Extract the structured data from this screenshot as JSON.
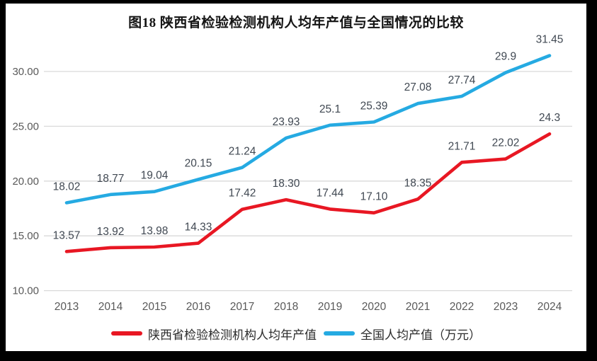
{
  "title": "图18 陕西省检验检测机构人均年产值与全国情况的比较",
  "chart_data": {
    "type": "line",
    "title": "图18 陕西省检验检测机构人均年产值与全国情况的比较",
    "categories": [
      "2013",
      "2014",
      "2015",
      "2016",
      "2017",
      "2018",
      "2019",
      "2020",
      "2021",
      "2022",
      "2023",
      "2024"
    ],
    "series": [
      {
        "name": "陕西省检验检测机构人均年产值",
        "color": "#e81723",
        "values": [
          13.57,
          13.92,
          13.98,
          14.33,
          17.42,
          18.3,
          17.44,
          17.1,
          18.35,
          21.71,
          22.02,
          24.3
        ],
        "labels": [
          "13.57",
          "13.92",
          "13.98",
          "14.33",
          "17.42",
          "18.30",
          "17.44",
          "17.10",
          "18.35",
          "21.71",
          "22.02",
          "24.3"
        ]
      },
      {
        "name": "全国人均产值（万元）",
        "color": "#25aae2",
        "values": [
          18.02,
          18.77,
          19.04,
          20.15,
          21.24,
          23.93,
          25.1,
          25.39,
          27.08,
          27.74,
          29.9,
          31.45
        ],
        "labels": [
          "18.02",
          "18.77",
          "19.04",
          "20.15",
          "21.24",
          "23.93",
          "25.1",
          "25.39",
          "27.08",
          "27.74",
          "29.9",
          "31.45"
        ]
      }
    ],
    "yticks": [
      "10.00",
      "15.00",
      "20.00",
      "25.00",
      "30.00"
    ],
    "ytick_values": [
      10,
      15,
      20,
      25,
      30
    ],
    "ylim": [
      10,
      32.5
    ],
    "xlabel": "",
    "ylabel": "",
    "grid": true,
    "legend_position": "bottom"
  },
  "colors": {
    "background": "#ffffff",
    "frame": "#000000",
    "grid": "#d9d9d9",
    "axis_text": "#595959",
    "data_label": "#404852",
    "title_text": "#141414"
  }
}
